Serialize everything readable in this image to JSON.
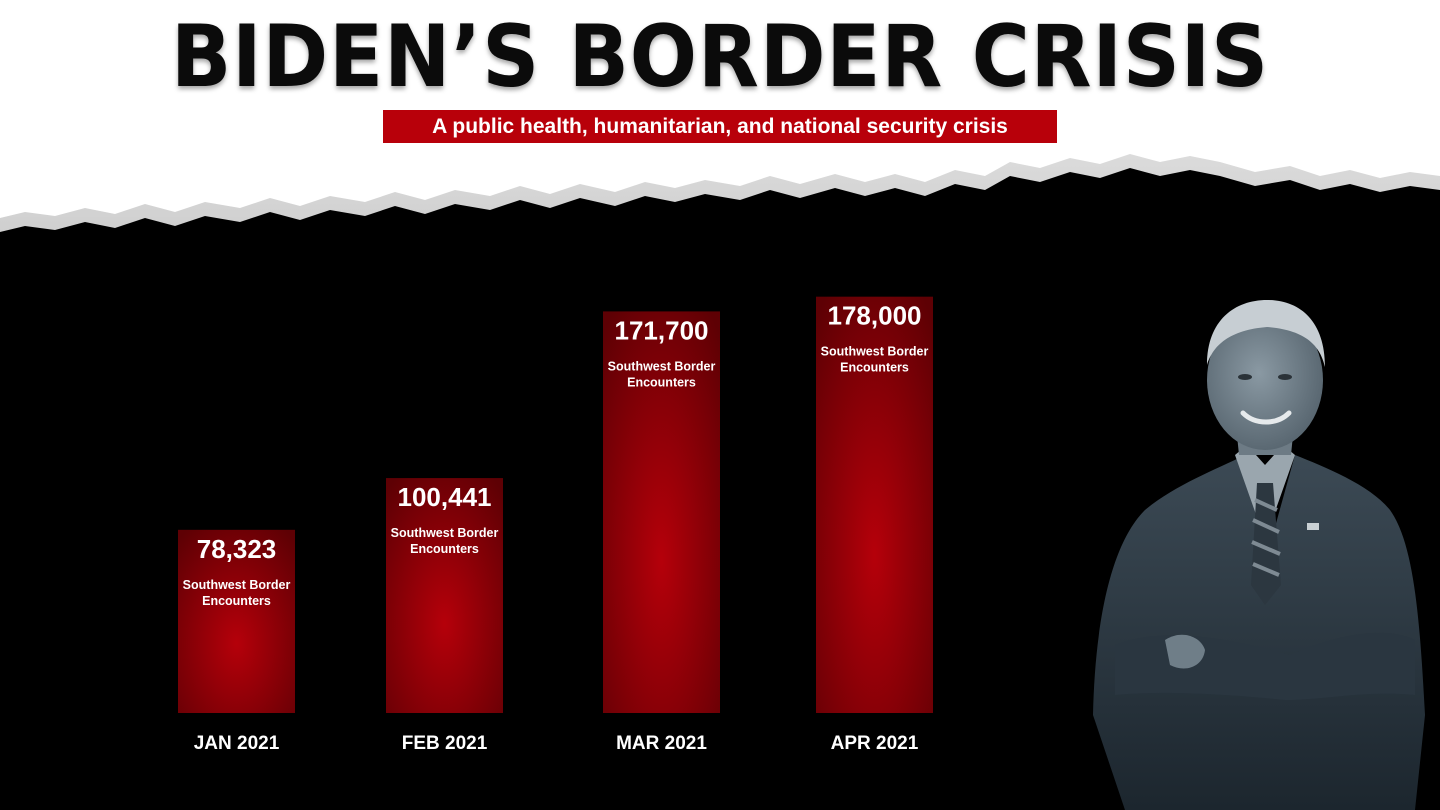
{
  "header": {
    "title": "BIDEN’S BORDER CRISIS",
    "subtitle": "A public health, humanitarian, and national security crisis"
  },
  "colors": {
    "bar_top": "#5e0004",
    "bar_mid": "#b5000a",
    "bar_bottom": "#5e0004",
    "subtitle_bg": "#b8000a",
    "paper": "#ffffff"
  },
  "chart_data": {
    "type": "bar",
    "categories": [
      "JAN 2021",
      "FEB 2021",
      "MAR 2021",
      "APR 2021"
    ],
    "values": [
      78323,
      100441,
      171700,
      178000
    ],
    "data_labels": [
      "78,323",
      "100,441",
      "171,700",
      "178,000"
    ],
    "bar_caption": "Southwest Border Encounters",
    "title": "BIDEN’S BORDER CRISIS",
    "subtitle": "A public health, humanitarian, and national security crisis",
    "xlabel": "",
    "ylabel": "",
    "ylim": [
      0,
      180000
    ],
    "grid": false,
    "legend": "none"
  },
  "photo": {
    "icon": "person-portrait-icon"
  }
}
